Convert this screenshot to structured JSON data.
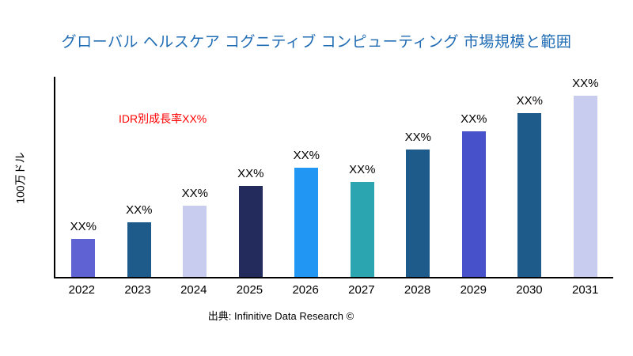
{
  "page": {
    "title": "グローバル ヘルスケア コグニティブ コンピューティング 市場規模と範囲",
    "title_color": "#1f6cb4",
    "annotation": "IDR別成長率XX%",
    "annotation_color": "#ff0000",
    "source": "出典: Infinitive Data Research ©"
  },
  "chart_data": {
    "type": "bar",
    "title": "グローバル ヘルスケア コグニティブ コンピューティング 市場規模と範囲",
    "xlabel": "",
    "ylabel": "100万ドル",
    "categories": [
      "2022",
      "2023",
      "2024",
      "2025",
      "2026",
      "2027",
      "2028",
      "2029",
      "2030",
      "2031"
    ],
    "values": [
      21,
      30,
      39,
      50,
      60,
      52,
      70,
      80,
      90,
      100
    ],
    "bar_labels": [
      "XX%",
      "XX%",
      "XX%",
      "XX%",
      "XX%",
      "XX%",
      "XX%",
      "XX%",
      "XX%",
      "XX%"
    ],
    "colors": [
      "#5f62d2",
      "#1e5a8a",
      "#c8ccee",
      "#232a5c",
      "#2196f3",
      "#2ba6b0",
      "#1e5a8a",
      "#4751c9",
      "#1e5a8a",
      "#c8ccee"
    ],
    "ylim": [
      0,
      110
    ],
    "grid": false,
    "legend": false,
    "annotation": "IDR別成長率XX%",
    "source": "出典: Infinitive Data Research ©"
  }
}
